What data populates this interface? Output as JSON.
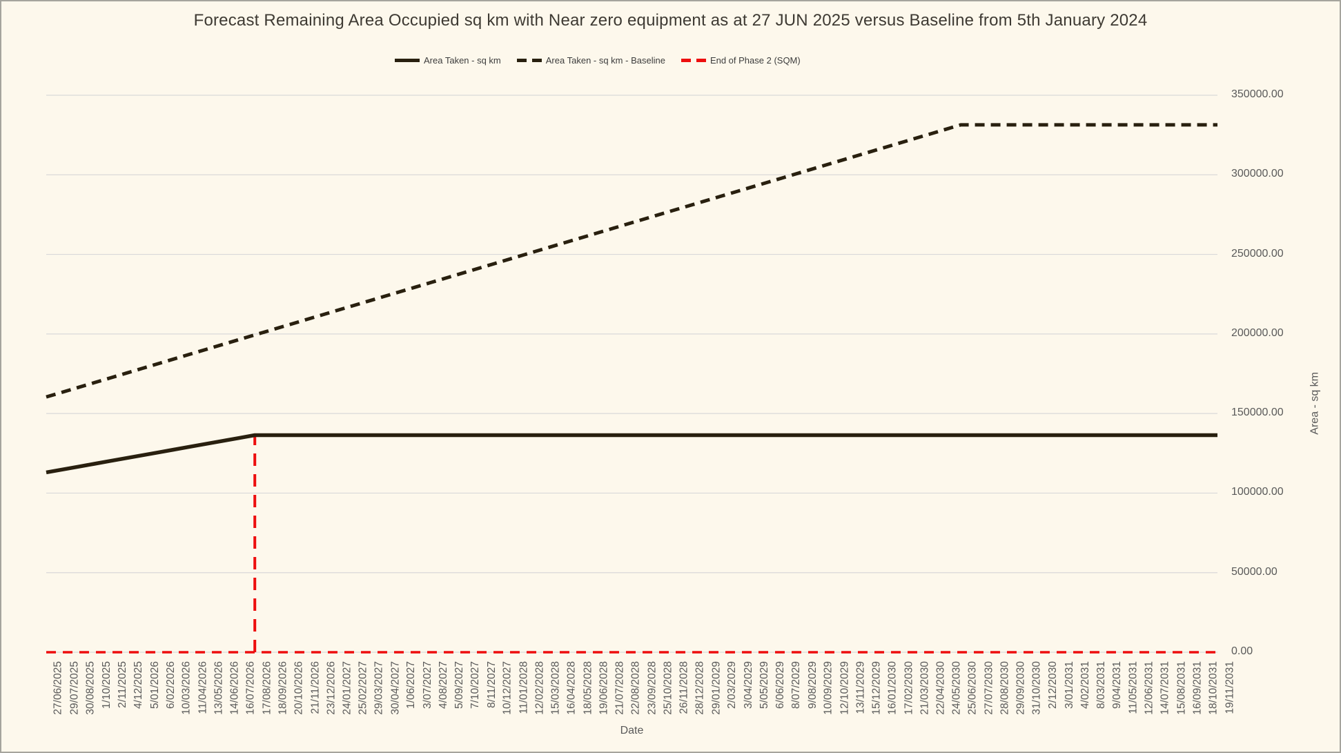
{
  "chart_data": {
    "type": "line",
    "title": "Forecast Remaining Area Occupied sq km with Near zero equipment as at 27 JUN 2025 versus Baseline from 5th January 2024",
    "xlabel": "Date",
    "ylabel": "Area - sq km",
    "ylim": [
      0,
      350000
    ],
    "ytick_labels": [
      "0.00",
      "50000.00",
      "100000.00",
      "150000.00",
      "200000.00",
      "250000.00",
      "300000.00",
      "350000.00"
    ],
    "grid": "horizontal",
    "legend_position": "top",
    "categories": [
      "27/06/2025",
      "29/07/2025",
      "30/08/2025",
      "1/10/2025",
      "2/11/2025",
      "4/12/2025",
      "5/01/2026",
      "6/02/2026",
      "10/03/2026",
      "11/04/2026",
      "13/05/2026",
      "14/06/2026",
      "16/07/2026",
      "17/08/2026",
      "18/09/2026",
      "20/10/2026",
      "21/11/2026",
      "23/12/2026",
      "24/01/2027",
      "25/02/2027",
      "29/03/2027",
      "30/04/2027",
      "1/06/2027",
      "3/07/2027",
      "4/08/2027",
      "5/09/2027",
      "7/10/2027",
      "8/11/2027",
      "10/12/2027",
      "11/01/2028",
      "12/02/2028",
      "15/03/2028",
      "16/04/2028",
      "18/05/2028",
      "19/06/2028",
      "21/07/2028",
      "22/08/2028",
      "23/09/2028",
      "25/10/2028",
      "26/11/2028",
      "28/12/2028",
      "29/01/2029",
      "2/03/2029",
      "3/04/2029",
      "5/05/2029",
      "6/06/2029",
      "8/07/2029",
      "9/08/2029",
      "10/09/2029",
      "12/10/2029",
      "13/11/2029",
      "15/12/2029",
      "16/01/2030",
      "17/02/2030",
      "21/03/2030",
      "22/04/2030",
      "24/05/2030",
      "25/06/2030",
      "27/07/2030",
      "28/08/2030",
      "29/09/2030",
      "31/10/2030",
      "2/12/2030",
      "3/01/2031",
      "4/02/2031",
      "8/03/2031",
      "9/04/2031",
      "11/05/2031",
      "12/06/2031",
      "14/07/2031",
      "15/08/2031",
      "16/09/2031",
      "18/10/2031",
      "19/11/2031"
    ],
    "series": [
      {
        "name": "Area Taken - sq km",
        "style": "solid",
        "color": "#29200f",
        "values": [
          113000,
          114800,
          116600,
          118400,
          120200,
          122000,
          123800,
          125600,
          127400,
          129200,
          131000,
          132800,
          134600,
          136400,
          136400,
          136400,
          136400,
          136400,
          136400,
          136400,
          136400,
          136400,
          136400,
          136400,
          136400,
          136400,
          136400,
          136400,
          136400,
          136400,
          136400,
          136400,
          136400,
          136400,
          136400,
          136400,
          136400,
          136400,
          136400,
          136400,
          136400,
          136400,
          136400,
          136400,
          136400,
          136400,
          136400,
          136400,
          136400,
          136400,
          136400,
          136400,
          136400,
          136400,
          136400,
          136400,
          136400,
          136400,
          136400,
          136400,
          136400,
          136400,
          136400,
          136400,
          136400,
          136400,
          136400,
          136400,
          136400,
          136400,
          136400,
          136400,
          136400,
          136400
        ]
      },
      {
        "name": "Area Taken - sq km - Baseline",
        "style": "dashed",
        "color": "#29200f",
        "values": [
          160400,
          163400,
          166400,
          169400,
          172400,
          175400,
          178400,
          181400,
          184400,
          187400,
          190400,
          193400,
          196400,
          199400,
          202400,
          205400,
          208400,
          211400,
          214400,
          217400,
          220400,
          223400,
          226400,
          229400,
          232400,
          235400,
          238400,
          241400,
          244400,
          247400,
          250400,
          253400,
          256400,
          259400,
          262400,
          265400,
          268400,
          271400,
          274400,
          277400,
          280400,
          283400,
          286400,
          289400,
          292400,
          295400,
          298400,
          301400,
          304400,
          307400,
          310400,
          313400,
          316400,
          319400,
          322400,
          325400,
          328400,
          331400,
          331400,
          331400,
          331400,
          331400,
          331400,
          331400,
          331400,
          331400,
          331400,
          331400,
          331400,
          331400,
          331400,
          331400,
          331400,
          331400
        ]
      },
      {
        "name": "End of Phase 2 (SQM)",
        "style": "dashed",
        "color": "#ed0e0e",
        "render": "zero-baseline-with-vertical-spike",
        "base_value": 0,
        "spike_index": 13,
        "spike_category": "17/08/2026",
        "spike_value": 136400,
        "values": [
          0,
          0,
          0,
          0,
          0,
          0,
          0,
          0,
          0,
          0,
          0,
          0,
          0,
          136400,
          0,
          0,
          0,
          0,
          0,
          0,
          0,
          0,
          0,
          0,
          0,
          0,
          0,
          0,
          0,
          0,
          0,
          0,
          0,
          0,
          0,
          0,
          0,
          0,
          0,
          0,
          0,
          0,
          0,
          0,
          0,
          0,
          0,
          0,
          0,
          0,
          0,
          0,
          0,
          0,
          0,
          0,
          0,
          0,
          0,
          0,
          0,
          0,
          0,
          0,
          0,
          0,
          0,
          0,
          0,
          0,
          0,
          0,
          0,
          0
        ]
      }
    ]
  },
  "colors": {
    "background": "#fdf8ec",
    "frame_border": "#a5a49d",
    "gridline": "#d9d9d9",
    "dark_line": "#29200f",
    "red_line": "#ed0e0e",
    "title_text": "#3e3a33",
    "axis_text": "#595959"
  }
}
